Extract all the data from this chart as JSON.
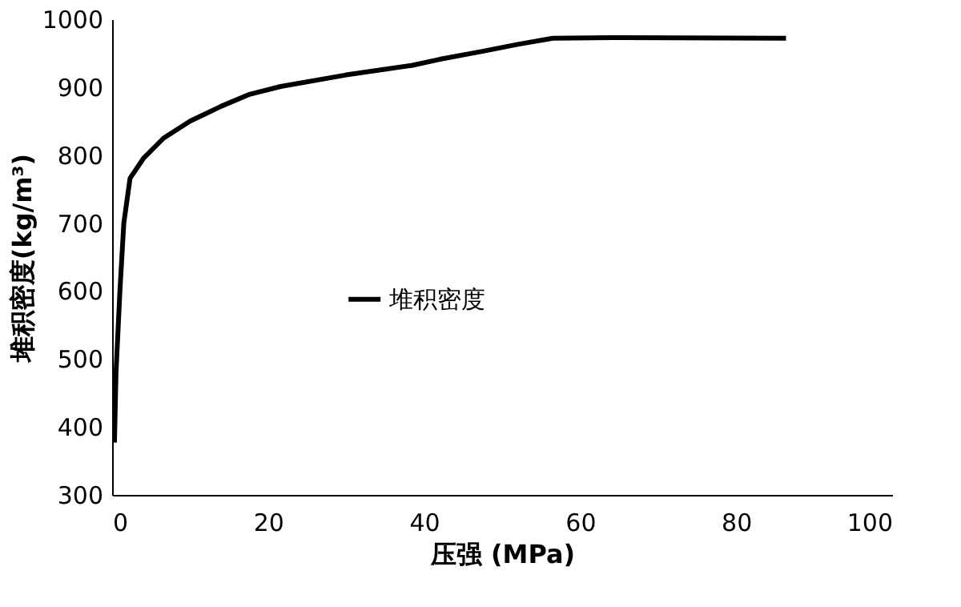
{
  "chart_data": {
    "type": "line",
    "xlabel": "压强 (MPa)",
    "ylabel": "堆积密度(kg/m³)",
    "xlim": [
      0,
      100
    ],
    "xticks": [
      0,
      20,
      40,
      60,
      80,
      100
    ],
    "ylim": [
      300,
      1000
    ],
    "yticks": [
      300,
      400,
      500,
      600,
      700,
      800,
      900,
      1000
    ],
    "grid": false,
    "legend": "left",
    "marker": "none",
    "line_style": "solid",
    "series": [
      {
        "name": "堆积密度",
        "color": "#000000",
        "x": [
          0.3,
          0.5,
          1,
          1.5,
          2.3,
          4,
          6.6,
          10,
          14,
          17.5,
          21.6,
          30,
          38.4,
          42,
          47.6,
          52,
          56.5,
          65,
          86.4
        ],
        "values": [
          377,
          480,
          600,
          700,
          766,
          795,
          825,
          850,
          872,
          889,
          901,
          918,
          932,
          941,
          953,
          963,
          972,
          973,
          972
        ]
      }
    ]
  }
}
